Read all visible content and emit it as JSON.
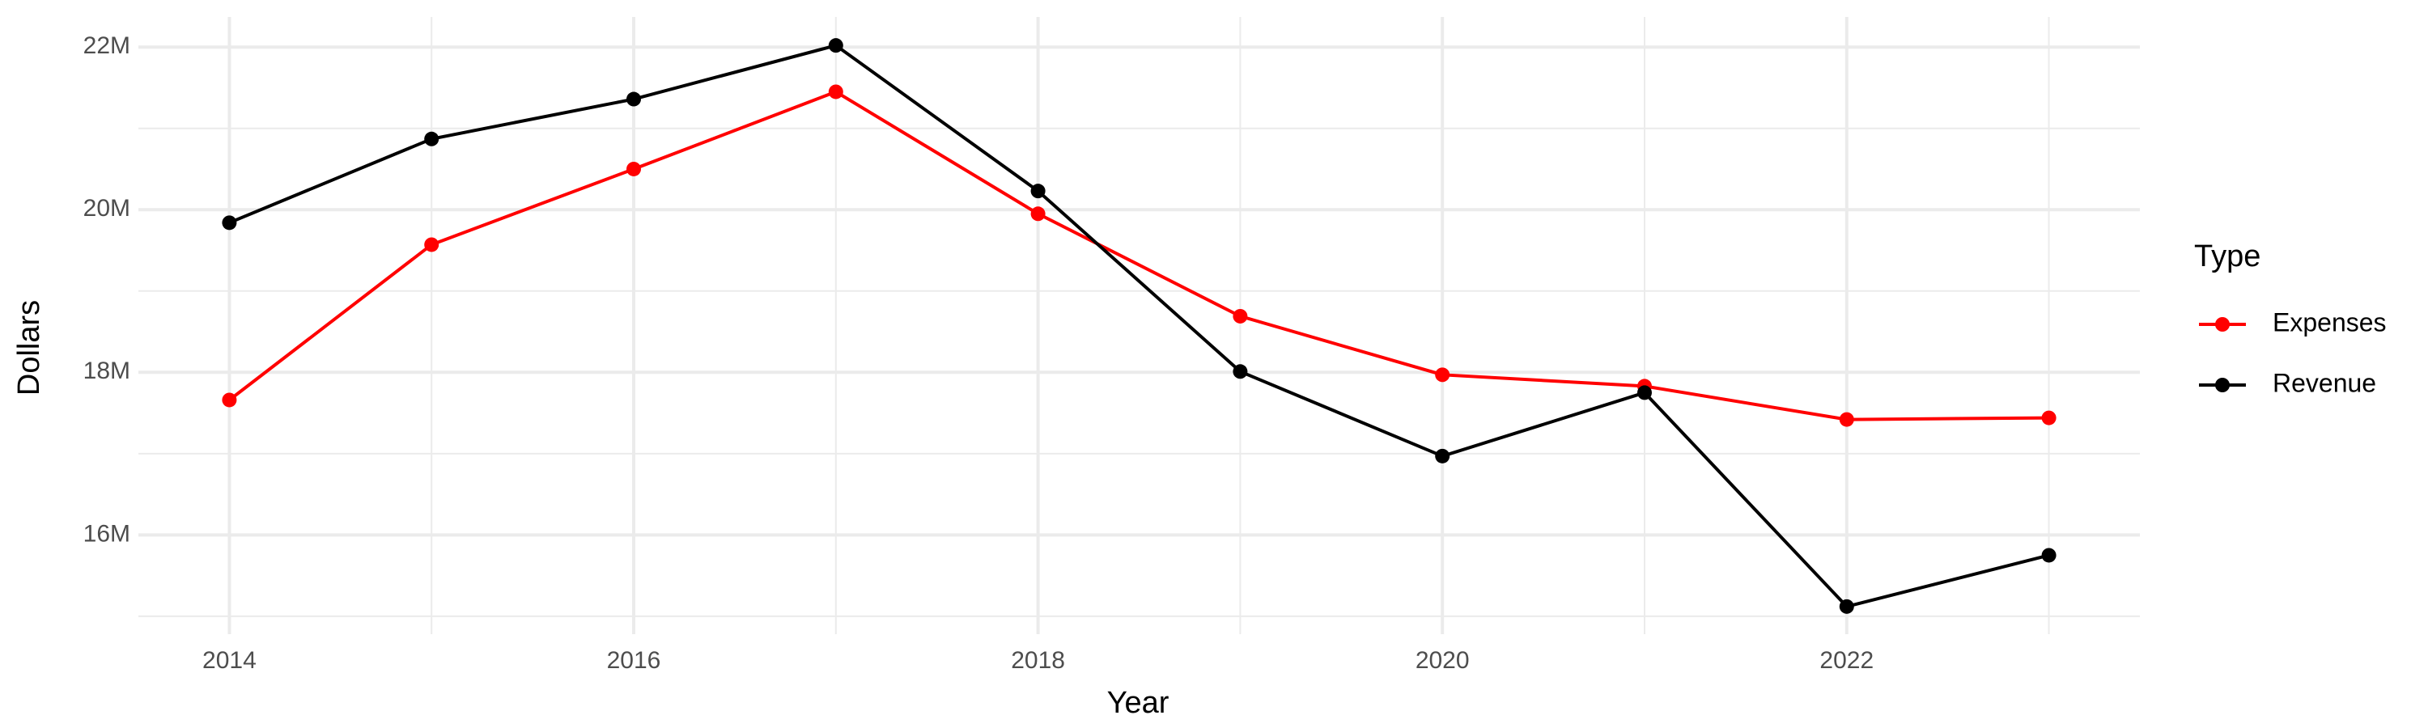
{
  "chart_data": {
    "type": "line",
    "x_label": "Year",
    "y_label": "Dollars",
    "legend_title": "Type",
    "legend": "right",
    "grid": true,
    "x": [
      2014,
      2015,
      2016,
      2017,
      2018,
      2019,
      2020,
      2021,
      2022,
      2023
    ],
    "series": [
      {
        "name": "Expenses",
        "color": "#ff0000",
        "values": [
          17660000,
          19570000,
          20500000,
          21450000,
          19950000,
          18690000,
          17970000,
          17830000,
          17420000,
          17440000
        ]
      },
      {
        "name": "Revenue",
        "color": "#000000",
        "values": [
          19840000,
          20870000,
          21360000,
          22020000,
          20230000,
          18010000,
          16970000,
          17750000,
          15120000,
          15750000
        ]
      }
    ],
    "xlim": [
      2013.55,
      2023.45
    ],
    "xticks": [
      2014,
      2016,
      2018,
      2020,
      2022
    ],
    "ylim": [
      14780000,
      22370000
    ],
    "yticks": [
      {
        "value": 16000000,
        "label": "16M"
      },
      {
        "value": 18000000,
        "label": "18M"
      },
      {
        "value": 20000000,
        "label": "20M"
      },
      {
        "value": 22000000,
        "label": "22M"
      }
    ]
  }
}
